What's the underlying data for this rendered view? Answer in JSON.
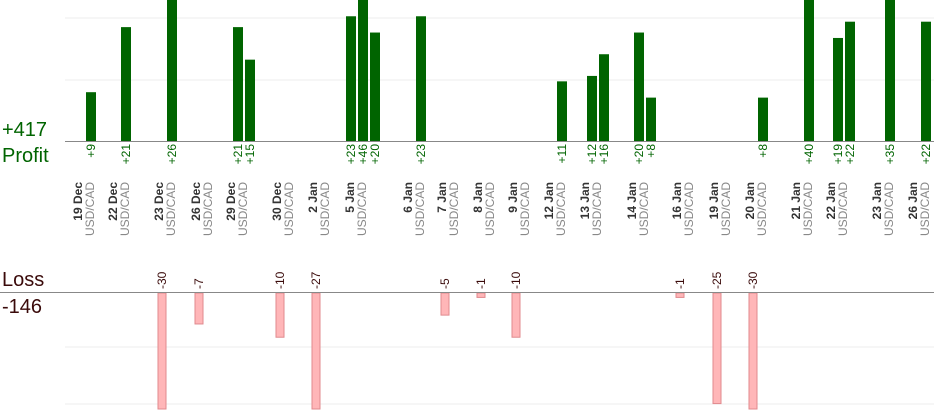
{
  "summary": {
    "profit_total": "+417",
    "profit_label": "Profit",
    "loss_label": "Loss",
    "loss_total": "-146"
  },
  "colors": {
    "profit_bar": "#006400",
    "profit_text": "#006400",
    "loss_bar": "#ffb6b8",
    "loss_bar_border": "#e08a8e",
    "loss_text": "#3a0a0a",
    "axis": "#888888",
    "grid": "#eeeeee",
    "day_text": "#333333",
    "pair_text": "#888888"
  },
  "chart_data": {
    "type": "bar",
    "title": "",
    "xlabel": "",
    "ylabel": "",
    "grid": true,
    "profit_ylim": [
      0,
      26
    ],
    "loss_ylim": [
      0,
      26
    ],
    "days": [
      {
        "date": "19 Dec",
        "pair": "USD/CAD",
        "profits": [
          "+9"
        ],
        "losses": []
      },
      {
        "date": "22 Dec",
        "pair": "USD/CAD",
        "profits": [
          "+21"
        ],
        "losses": []
      },
      {
        "date": "23 Dec",
        "pair": "USD/CAD",
        "profits": [
          "+26"
        ],
        "losses": [
          "-30"
        ]
      },
      {
        "date": "26 Dec",
        "pair": "USD/CAD",
        "profits": [],
        "losses": [
          "-7"
        ]
      },
      {
        "date": "29 Dec",
        "pair": "USD/CAD",
        "profits": [
          "+21",
          "+15"
        ],
        "losses": []
      },
      {
        "date": "30 Dec",
        "pair": "USD/CAD",
        "profits": [],
        "losses": [
          "-10"
        ]
      },
      {
        "date": "2 Jan",
        "pair": "USD/CAD",
        "profits": [],
        "losses": [
          "-27"
        ]
      },
      {
        "date": "5 Jan",
        "pair": "USD/CAD",
        "profits": [
          "+23",
          "+46",
          "+20"
        ],
        "losses": []
      },
      {
        "date": "6 Jan",
        "pair": "USD/CAD",
        "profits": [
          "+23"
        ],
        "losses": []
      },
      {
        "date": "7 Jan",
        "pair": "USD/CAD",
        "profits": [],
        "losses": [
          "-5"
        ]
      },
      {
        "date": "8 Jan",
        "pair": "USD/CAD",
        "profits": [],
        "losses": [
          "-1"
        ]
      },
      {
        "date": "9 Jan",
        "pair": "USD/CAD",
        "profits": [],
        "losses": [
          "-10"
        ]
      },
      {
        "date": "12 Jan",
        "pair": "USD/CAD",
        "profits": [
          "+11"
        ],
        "losses": []
      },
      {
        "date": "13 Jan",
        "pair": "USD/CAD",
        "profits": [
          "+12",
          "+16"
        ],
        "losses": []
      },
      {
        "date": "14 Jan",
        "pair": "USD/CAD",
        "profits": [
          "+20",
          "+8"
        ],
        "losses": []
      },
      {
        "date": "16 Jan",
        "pair": "USD/CAD",
        "profits": [],
        "losses": [
          "-1"
        ]
      },
      {
        "date": "19 Jan",
        "pair": "USD/CAD",
        "profits": [],
        "losses": [
          "-25"
        ]
      },
      {
        "date": "20 Jan",
        "pair": "USD/CAD",
        "profits": [
          "+8"
        ],
        "losses": [
          "-30"
        ]
      },
      {
        "date": "21 Jan",
        "pair": "USD/CAD",
        "profits": [
          "+40"
        ],
        "losses": []
      },
      {
        "date": "22 Jan",
        "pair": "USD/CAD",
        "profits": [
          "+19",
          "+22"
        ],
        "losses": []
      },
      {
        "date": "23 Jan",
        "pair": "USD/CAD",
        "profits": [
          "+35"
        ],
        "losses": []
      },
      {
        "date": "26 Jan",
        "pair": "USD/CAD",
        "profits": [
          "+22"
        ],
        "losses": []
      }
    ]
  }
}
